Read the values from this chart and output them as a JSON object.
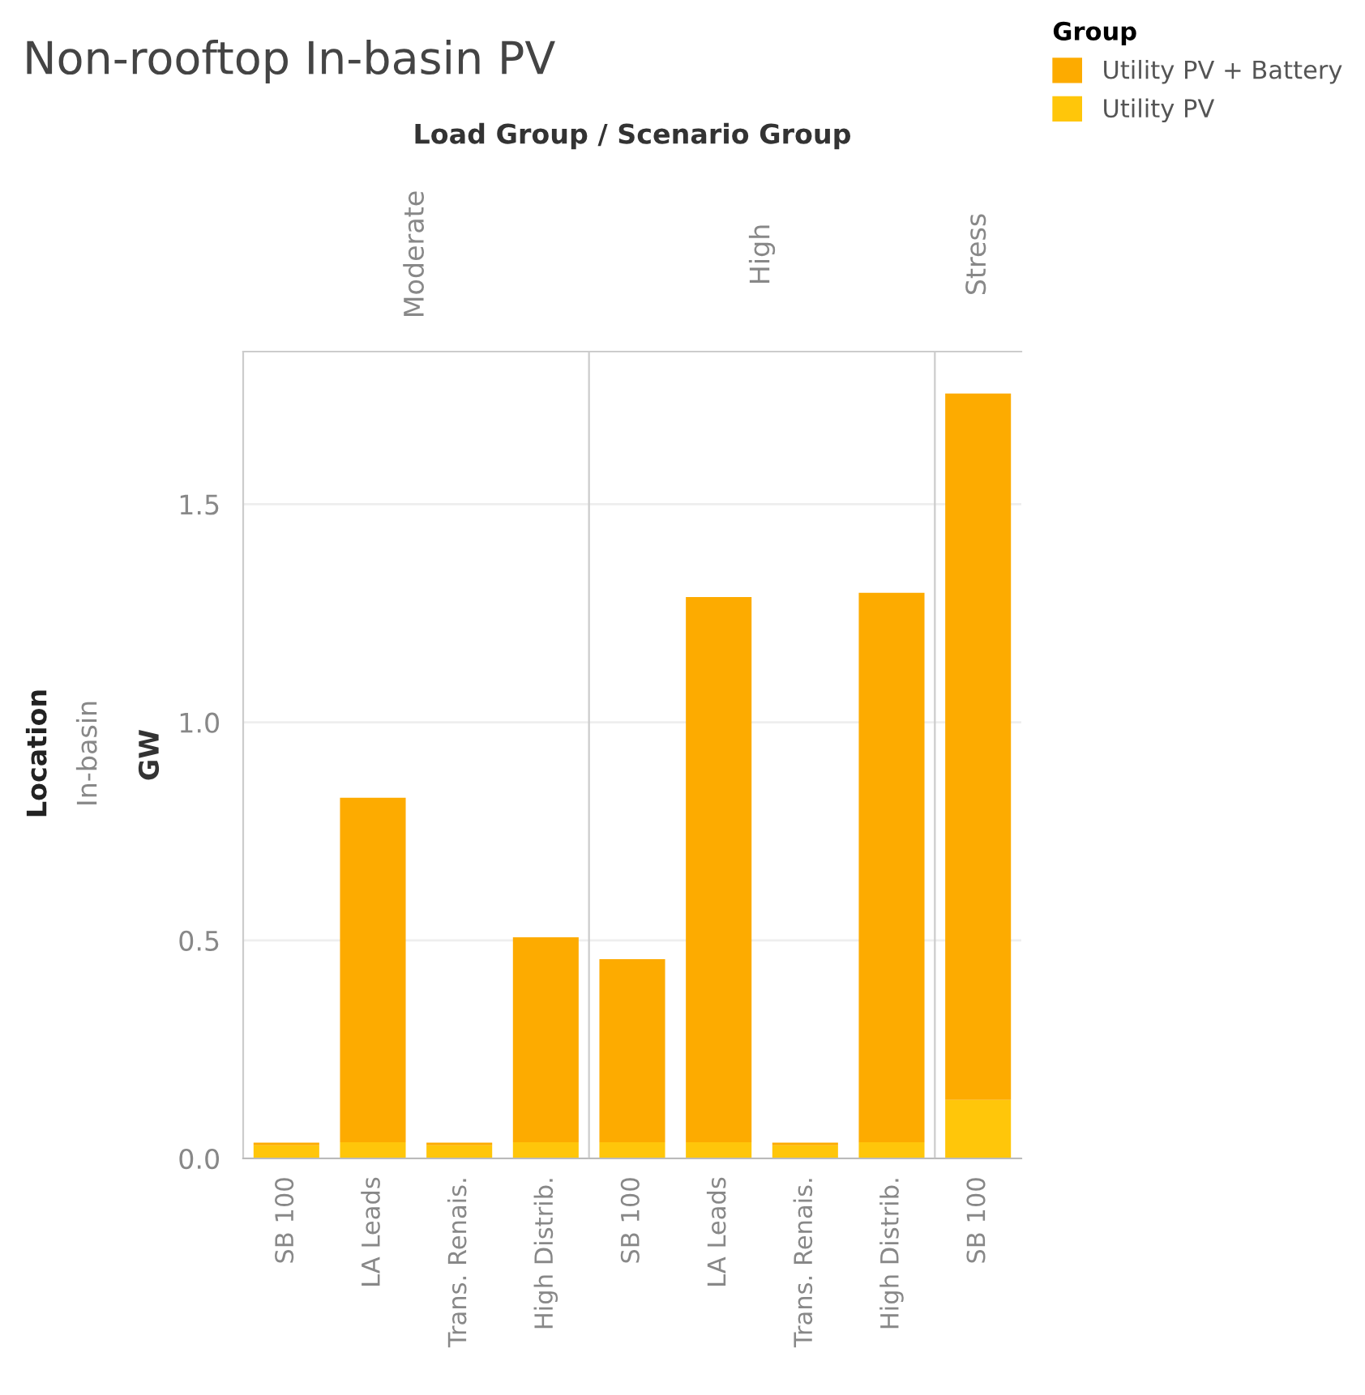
{
  "chart_data": [
    {
      "type": "bar",
      "stacked": true,
      "title": "Non-rooftop In-basin PV",
      "x2label": "Moderate",
      "ylabel": "GW",
      "annotations": [
        "Load Group / Scenario Group",
        "Location",
        "In-basin"
      ],
      "categories": [
        "SB 100",
        "LA Leads",
        "Trans. Renais.",
        "High Distrib."
      ],
      "series": [
        {
          "name": "Utility PV",
          "color": "#ffc60a",
          "values": [
            0.03,
            0.037,
            0.03,
            0.037
          ]
        },
        {
          "name": "Utility PV + Battery",
          "color": "#fdab00",
          "values": [
            0.006,
            0.79,
            0.006,
            0.47
          ]
        }
      ],
      "ylim": [
        0,
        1.85
      ],
      "yticks": [
        {
          "value": 0,
          "label": "0.0"
        },
        {
          "value": 0.5,
          "label": "0.5"
        },
        {
          "value": 1,
          "label": "1.0"
        },
        {
          "value": 1.5,
          "label": "1.5"
        }
      ],
      "grid": "y",
      "legend": "top right",
      "legend_title": "Group"
    },
    {
      "type": "bar",
      "stacked": true,
      "x2label": "High",
      "categories": [
        "SB 100",
        "LA Leads",
        "Trans. Renais.",
        "High Distrib."
      ],
      "series": [
        {
          "color": "#ffc60a",
          "values": [
            0.037,
            0.037,
            0.03,
            0.037
          ]
        },
        {
          "color": "#fdab00",
          "values": [
            0.42,
            1.25,
            0.006,
            1.26
          ]
        }
      ],
      "ylim": [
        0,
        1.85
      ],
      "yticks": [
        0,
        0.5,
        1,
        1.5
      ],
      "grid": "y",
      "tick_labels": "x"
    },
    {
      "type": "bar",
      "stacked": true,
      "x2label": "Stress",
      "categories": [
        "SB 100"
      ],
      "series": [
        {
          "color": "#ffc60a",
          "values": [
            0.134
          ]
        },
        {
          "color": "#fdab00",
          "values": [
            1.62
          ]
        }
      ],
      "ylim": [
        0,
        1.85
      ],
      "yticks": [
        0,
        0.5,
        1,
        1.5
      ],
      "grid": "y",
      "tick_labels": "x"
    }
  ]
}
